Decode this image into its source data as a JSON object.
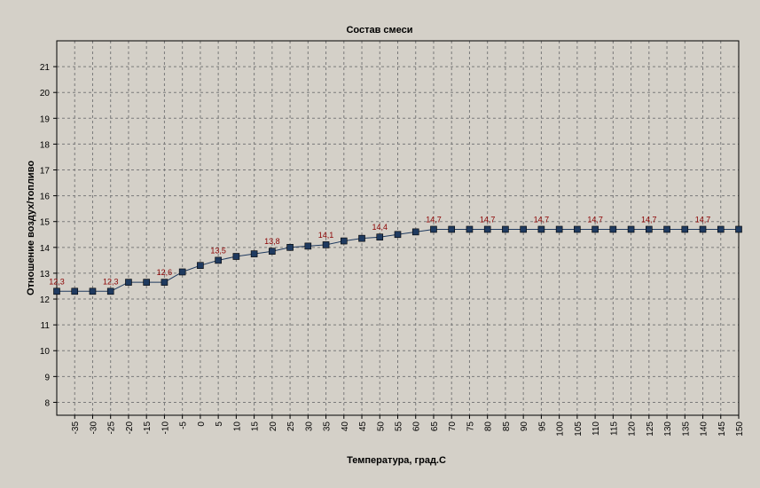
{
  "chart_data": {
    "type": "line",
    "title": "Состав смеси",
    "xlabel": "Температура, град.С",
    "ylabel": "Отношение воздух/топливо",
    "xlim": [
      -40,
      150
    ],
    "ylim": [
      7.5,
      22
    ],
    "x_ticks": [
      -35,
      -30,
      -25,
      -20,
      -15,
      -10,
      -5,
      0,
      5,
      10,
      15,
      20,
      25,
      30,
      35,
      40,
      45,
      50,
      55,
      60,
      65,
      70,
      75,
      80,
      85,
      90,
      95,
      100,
      105,
      110,
      115,
      120,
      125,
      130,
      135,
      140,
      145,
      150
    ],
    "y_ticks": [
      8,
      9,
      10,
      11,
      12,
      13,
      14,
      15,
      16,
      17,
      18,
      19,
      20,
      21
    ],
    "grid": true,
    "series": [
      {
        "color": "#1f3a5f",
        "marker_color": "#1f3a5f",
        "x": [
          -40,
          -35,
          -30,
          -25,
          -20,
          -15,
          -10,
          -5,
          0,
          5,
          10,
          15,
          20,
          25,
          30,
          35,
          40,
          45,
          50,
          55,
          60,
          65,
          70,
          75,
          80,
          85,
          90,
          95,
          100,
          105,
          110,
          115,
          120,
          125,
          130,
          135,
          140,
          145,
          150
        ],
        "y": [
          12.3,
          12.3,
          12.3,
          12.3,
          12.65,
          12.65,
          12.65,
          13.05,
          13.3,
          13.5,
          13.65,
          13.75,
          13.85,
          14.0,
          14.05,
          14.1,
          14.25,
          14.35,
          14.4,
          14.5,
          14.6,
          14.7,
          14.7,
          14.7,
          14.7,
          14.7,
          14.7,
          14.7,
          14.7,
          14.7,
          14.7,
          14.7,
          14.7,
          14.7,
          14.7,
          14.7,
          14.7,
          14.7,
          14.7
        ]
      }
    ],
    "data_labels": [
      {
        "x": -40,
        "y": 12.3,
        "text": "12,3"
      },
      {
        "x": -25,
        "y": 12.3,
        "text": "12,3"
      },
      {
        "x": -10,
        "y": 12.65,
        "text": "12,6"
      },
      {
        "x": 5,
        "y": 13.5,
        "text": "13,5"
      },
      {
        "x": 20,
        "y": 13.85,
        "text": "13,8"
      },
      {
        "x": 35,
        "y": 14.1,
        "text": "14,1"
      },
      {
        "x": 50,
        "y": 14.4,
        "text": "14,4"
      },
      {
        "x": 65,
        "y": 14.7,
        "text": "14,7"
      },
      {
        "x": 80,
        "y": 14.7,
        "text": "14,7"
      },
      {
        "x": 95,
        "y": 14.7,
        "text": "14,7"
      },
      {
        "x": 110,
        "y": 14.7,
        "text": "14,7"
      },
      {
        "x": 125,
        "y": 14.7,
        "text": "14,7"
      },
      {
        "x": 140,
        "y": 14.7,
        "text": "14,7"
      }
    ]
  }
}
